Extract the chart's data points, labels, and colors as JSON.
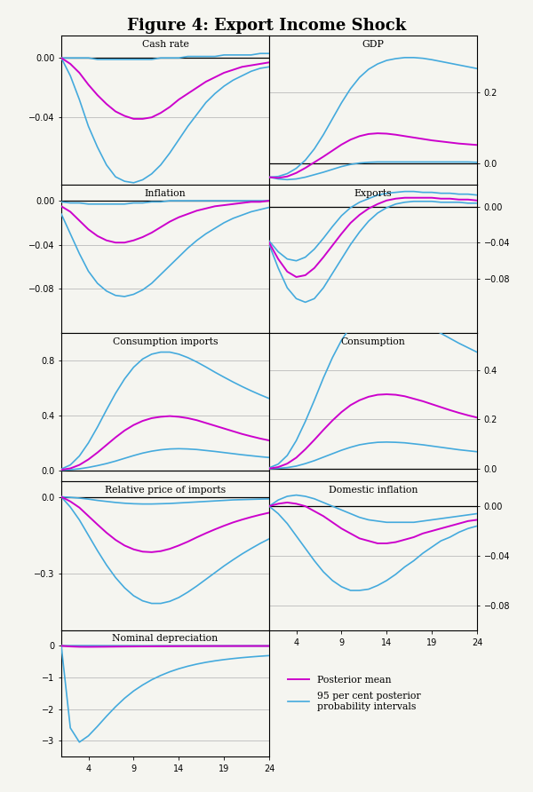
{
  "title": "Figure 4: Export Income Shock",
  "title_fontsize": 13,
  "panels": [
    {
      "title": "Cash rate",
      "ylim": [
        -0.085,
        0.015
      ],
      "yticks": [
        0.0,
        -0.04
      ],
      "mean": [
        0.0,
        -0.004,
        -0.01,
        -0.018,
        -0.025,
        -0.031,
        -0.036,
        -0.039,
        -0.041,
        -0.041,
        -0.04,
        -0.037,
        -0.033,
        -0.028,
        -0.024,
        -0.02,
        -0.016,
        -0.013,
        -0.01,
        -0.008,
        -0.006,
        -0.005,
        -0.004,
        -0.003
      ],
      "upper": [
        0.0,
        0.0,
        0.0,
        0.0,
        -0.001,
        -0.001,
        -0.001,
        -0.001,
        -0.001,
        -0.001,
        -0.001,
        0.0,
        0.0,
        0.0,
        0.001,
        0.001,
        0.001,
        0.001,
        0.002,
        0.002,
        0.002,
        0.002,
        0.003,
        0.003
      ],
      "lower": [
        0.0,
        -0.012,
        -0.028,
        -0.046,
        -0.06,
        -0.072,
        -0.08,
        -0.083,
        -0.084,
        -0.082,
        -0.078,
        -0.072,
        -0.064,
        -0.055,
        -0.046,
        -0.038,
        -0.03,
        -0.024,
        -0.019,
        -0.015,
        -0.012,
        -0.009,
        -0.007,
        -0.006
      ],
      "row": 0,
      "col": 0,
      "right_yaxis": false
    },
    {
      "title": "GDP",
      "ylim": [
        -0.06,
        0.36
      ],
      "yticks": [
        0.2,
        0.0
      ],
      "mean": [
        -0.04,
        -0.042,
        -0.038,
        -0.028,
        -0.014,
        0.002,
        0.018,
        0.035,
        0.052,
        0.066,
        0.076,
        0.082,
        0.084,
        0.083,
        0.08,
        0.076,
        0.072,
        0.068,
        0.064,
        0.061,
        0.058,
        0.055,
        0.053,
        0.051
      ],
      "upper": [
        -0.04,
        -0.038,
        -0.03,
        -0.015,
        0.008,
        0.04,
        0.08,
        0.125,
        0.17,
        0.21,
        0.242,
        0.265,
        0.28,
        0.29,
        0.295,
        0.298,
        0.298,
        0.296,
        0.292,
        0.287,
        0.282,
        0.277,
        0.272,
        0.267
      ],
      "lower": [
        -0.04,
        -0.045,
        -0.047,
        -0.045,
        -0.04,
        -0.033,
        -0.026,
        -0.018,
        -0.01,
        -0.004,
        0.0,
        0.002,
        0.003,
        0.003,
        0.003,
        0.003,
        0.003,
        0.003,
        0.003,
        0.003,
        0.003,
        0.003,
        0.003,
        0.002
      ],
      "row": 0,
      "col": 1,
      "right_yaxis": true
    },
    {
      "title": "Inflation",
      "ylim": [
        -0.12,
        0.015
      ],
      "yticks": [
        0.0,
        -0.04,
        -0.08
      ],
      "mean": [
        -0.005,
        -0.01,
        -0.018,
        -0.026,
        -0.032,
        -0.036,
        -0.038,
        -0.038,
        -0.036,
        -0.033,
        -0.029,
        -0.024,
        -0.019,
        -0.015,
        -0.012,
        -0.009,
        -0.007,
        -0.005,
        -0.004,
        -0.003,
        -0.002,
        -0.001,
        -0.001,
        0.0
      ],
      "upper": [
        -0.001,
        -0.002,
        -0.002,
        -0.003,
        -0.003,
        -0.003,
        -0.003,
        -0.003,
        -0.002,
        -0.002,
        -0.001,
        -0.001,
        0.0,
        0.0,
        0.0,
        0.0,
        0.0,
        0.0,
        0.0,
        0.0,
        0.0,
        0.0,
        0.0,
        0.0
      ],
      "lower": [
        -0.012,
        -0.03,
        -0.048,
        -0.064,
        -0.075,
        -0.082,
        -0.086,
        -0.087,
        -0.085,
        -0.081,
        -0.075,
        -0.067,
        -0.059,
        -0.051,
        -0.043,
        -0.036,
        -0.03,
        -0.025,
        -0.02,
        -0.016,
        -0.013,
        -0.01,
        -0.008,
        -0.006
      ],
      "row": 1,
      "col": 0,
      "right_yaxis": false
    },
    {
      "title": "Exports",
      "ylim": [
        -0.14,
        0.025
      ],
      "yticks": [
        0.0,
        -0.04,
        -0.08
      ],
      "mean": [
        -0.04,
        -0.058,
        -0.072,
        -0.078,
        -0.076,
        -0.068,
        -0.056,
        -0.043,
        -0.03,
        -0.018,
        -0.009,
        -0.002,
        0.003,
        0.007,
        0.009,
        0.01,
        0.01,
        0.01,
        0.01,
        0.009,
        0.009,
        0.008,
        0.008,
        0.007
      ],
      "upper": [
        -0.038,
        -0.05,
        -0.058,
        -0.06,
        -0.056,
        -0.047,
        -0.035,
        -0.022,
        -0.01,
        -0.001,
        0.005,
        0.009,
        0.013,
        0.015,
        0.016,
        0.017,
        0.017,
        0.016,
        0.016,
        0.015,
        0.015,
        0.014,
        0.014,
        0.013
      ],
      "lower": [
        -0.042,
        -0.068,
        -0.09,
        -0.102,
        -0.106,
        -0.102,
        -0.09,
        -0.074,
        -0.058,
        -0.042,
        -0.028,
        -0.016,
        -0.007,
        -0.001,
        0.003,
        0.005,
        0.006,
        0.006,
        0.006,
        0.005,
        0.005,
        0.005,
        0.004,
        0.004
      ],
      "row": 1,
      "col": 1,
      "right_yaxis": true
    },
    {
      "title": "Consumption imports",
      "ylim": [
        -0.08,
        1.0
      ],
      "yticks": [
        0.8,
        0.4,
        0.0
      ],
      "mean": [
        0.005,
        0.015,
        0.04,
        0.08,
        0.13,
        0.185,
        0.24,
        0.29,
        0.33,
        0.36,
        0.38,
        0.39,
        0.395,
        0.39,
        0.38,
        0.365,
        0.345,
        0.325,
        0.305,
        0.285,
        0.265,
        0.248,
        0.232,
        0.218
      ],
      "upper": [
        0.01,
        0.04,
        0.105,
        0.2,
        0.315,
        0.44,
        0.56,
        0.665,
        0.75,
        0.81,
        0.845,
        0.86,
        0.86,
        0.845,
        0.82,
        0.788,
        0.752,
        0.714,
        0.678,
        0.643,
        0.61,
        0.579,
        0.55,
        0.523
      ],
      "lower": [
        0.002,
        0.005,
        0.012,
        0.022,
        0.035,
        0.05,
        0.068,
        0.088,
        0.108,
        0.126,
        0.14,
        0.15,
        0.156,
        0.158,
        0.156,
        0.152,
        0.145,
        0.138,
        0.13,
        0.122,
        0.114,
        0.107,
        0.1,
        0.094
      ],
      "row": 2,
      "col": 0,
      "right_yaxis": false
    },
    {
      "title": "Consumption",
      "ylim": [
        -0.05,
        0.55
      ],
      "yticks": [
        0.4,
        0.2,
        0.0
      ],
      "mean": [
        0.002,
        0.008,
        0.022,
        0.046,
        0.08,
        0.118,
        0.158,
        0.196,
        0.23,
        0.258,
        0.278,
        0.292,
        0.3,
        0.302,
        0.3,
        0.294,
        0.284,
        0.274,
        0.262,
        0.25,
        0.238,
        0.227,
        0.217,
        0.208
      ],
      "upper": [
        0.005,
        0.02,
        0.055,
        0.115,
        0.192,
        0.278,
        0.368,
        0.45,
        0.52,
        0.575,
        0.612,
        0.635,
        0.645,
        0.645,
        0.638,
        0.625,
        0.608,
        0.588,
        0.568,
        0.548,
        0.528,
        0.508,
        0.49,
        0.472
      ],
      "lower": [
        0.001,
        0.003,
        0.006,
        0.012,
        0.022,
        0.034,
        0.048,
        0.062,
        0.076,
        0.088,
        0.098,
        0.104,
        0.108,
        0.109,
        0.108,
        0.106,
        0.102,
        0.098,
        0.093,
        0.088,
        0.083,
        0.078,
        0.074,
        0.07
      ],
      "row": 2,
      "col": 1,
      "right_yaxis": true
    },
    {
      "title": "Relative price of imports",
      "ylim": [
        -0.52,
        0.06
      ],
      "yticks": [
        0.0,
        -0.3
      ],
      "mean": [
        0.0,
        -0.018,
        -0.042,
        -0.075,
        -0.108,
        -0.14,
        -0.168,
        -0.19,
        -0.205,
        -0.214,
        -0.216,
        -0.212,
        -0.203,
        -0.19,
        -0.175,
        -0.158,
        -0.142,
        -0.127,
        -0.113,
        -0.1,
        -0.089,
        -0.079,
        -0.07,
        -0.062
      ],
      "upper": [
        0.0,
        -0.002,
        -0.005,
        -0.009,
        -0.014,
        -0.018,
        -0.022,
        -0.025,
        -0.027,
        -0.028,
        -0.028,
        -0.027,
        -0.026,
        -0.024,
        -0.022,
        -0.02,
        -0.018,
        -0.016,
        -0.014,
        -0.012,
        -0.011,
        -0.01,
        -0.009,
        -0.008
      ],
      "lower": [
        0.0,
        -0.04,
        -0.09,
        -0.15,
        -0.21,
        -0.266,
        -0.315,
        -0.355,
        -0.386,
        -0.406,
        -0.416,
        -0.416,
        -0.408,
        -0.393,
        -0.372,
        -0.348,
        -0.322,
        -0.296,
        -0.27,
        -0.246,
        -0.223,
        -0.202,
        -0.182,
        -0.164
      ],
      "row": 3,
      "col": 0,
      "right_yaxis": false
    },
    {
      "title": "Domestic inflation",
      "ylim": [
        -0.1,
        0.02
      ],
      "yticks": [
        0.0,
        -0.04,
        -0.08
      ],
      "mean": [
        0.0,
        0.002,
        0.003,
        0.002,
        0.0,
        -0.004,
        -0.008,
        -0.013,
        -0.018,
        -0.022,
        -0.026,
        -0.028,
        -0.03,
        -0.03,
        -0.029,
        -0.027,
        -0.025,
        -0.022,
        -0.02,
        -0.018,
        -0.016,
        -0.014,
        -0.012,
        -0.011
      ],
      "upper": [
        0.0,
        0.005,
        0.008,
        0.009,
        0.008,
        0.006,
        0.003,
        0.0,
        -0.003,
        -0.006,
        -0.009,
        -0.011,
        -0.012,
        -0.013,
        -0.013,
        -0.013,
        -0.013,
        -0.012,
        -0.011,
        -0.01,
        -0.009,
        -0.008,
        -0.007,
        -0.006
      ],
      "lower": [
        0.0,
        -0.006,
        -0.014,
        -0.024,
        -0.034,
        -0.044,
        -0.053,
        -0.06,
        -0.065,
        -0.068,
        -0.068,
        -0.067,
        -0.064,
        -0.06,
        -0.055,
        -0.049,
        -0.044,
        -0.038,
        -0.033,
        -0.028,
        -0.025,
        -0.021,
        -0.018,
        -0.016
      ],
      "row": 3,
      "col": 1,
      "right_yaxis": true
    },
    {
      "title": "Nominal depreciation",
      "ylim": [
        -3.5,
        0.5
      ],
      "yticks": [
        0,
        -1,
        -2,
        -3
      ],
      "mean": [
        0.0,
        -0.02,
        -0.03,
        -0.032,
        -0.03,
        -0.028,
        -0.025,
        -0.022,
        -0.02,
        -0.018,
        -0.016,
        -0.014,
        -0.012,
        -0.011,
        -0.01,
        -0.009,
        -0.008,
        -0.007,
        -0.007,
        -0.006,
        -0.006,
        -0.005,
        -0.005,
        -0.005
      ],
      "upper": [
        0.0,
        0.005,
        0.005,
        0.005,
        0.004,
        0.003,
        0.003,
        0.002,
        0.002,
        0.001,
        0.001,
        0.001,
        0.0,
        0.0,
        0.0,
        -0.001,
        -0.001,
        -0.001,
        -0.001,
        -0.001,
        -0.001,
        -0.001,
        -0.001,
        -0.001
      ],
      "lower": [
        0.0,
        -2.6,
        -3.05,
        -2.85,
        -2.55,
        -2.23,
        -1.93,
        -1.66,
        -1.43,
        -1.24,
        -1.075,
        -0.938,
        -0.822,
        -0.725,
        -0.645,
        -0.578,
        -0.522,
        -0.475,
        -0.436,
        -0.403,
        -0.374,
        -0.35,
        -0.328,
        -0.309
      ],
      "row": 4,
      "col": 0,
      "right_yaxis": false
    }
  ],
  "mean_color": "#cc00cc",
  "ci_color": "#44aadd",
  "zero_line_color": "black",
  "grid_color": "#bbbbbb",
  "x_values": [
    1,
    2,
    3,
    4,
    5,
    6,
    7,
    8,
    9,
    10,
    11,
    12,
    13,
    14,
    15,
    16,
    17,
    18,
    19,
    20,
    21,
    22,
    23,
    24
  ],
  "xticks": [
    4,
    9,
    14,
    19,
    24
  ],
  "legend_labels": [
    "Posterior mean",
    "95 per cent posterior\nprobability intervals"
  ],
  "legend_colors": [
    "#cc00cc",
    "#44aadd"
  ],
  "background_color": "#f5f5f0"
}
